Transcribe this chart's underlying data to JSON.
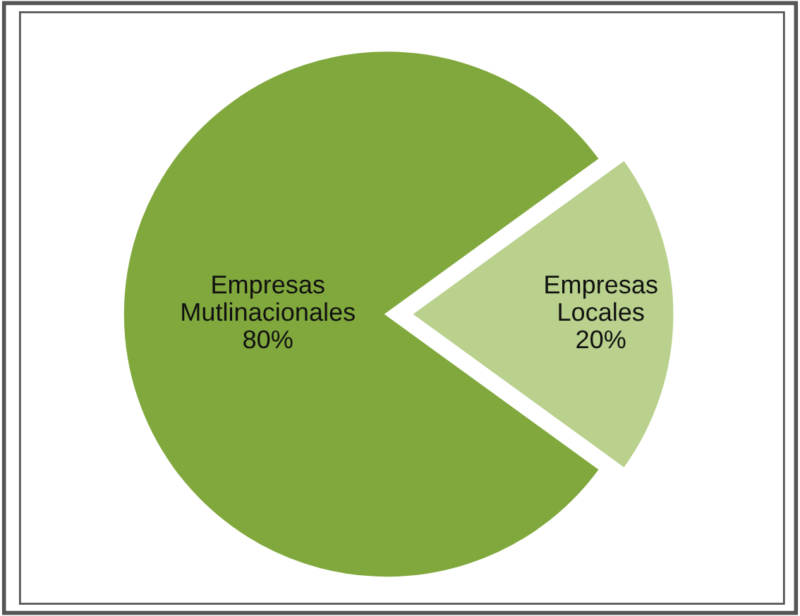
{
  "chart_data": {
    "type": "pie",
    "categories": [
      "Empresas Mutlinacionales",
      "Empresas Locales"
    ],
    "values": [
      80,
      20
    ],
    "colors": [
      "#80a83c",
      "#b9d18c"
    ],
    "value_labels": [
      "80%",
      "20%"
    ],
    "legend": false
  }
}
